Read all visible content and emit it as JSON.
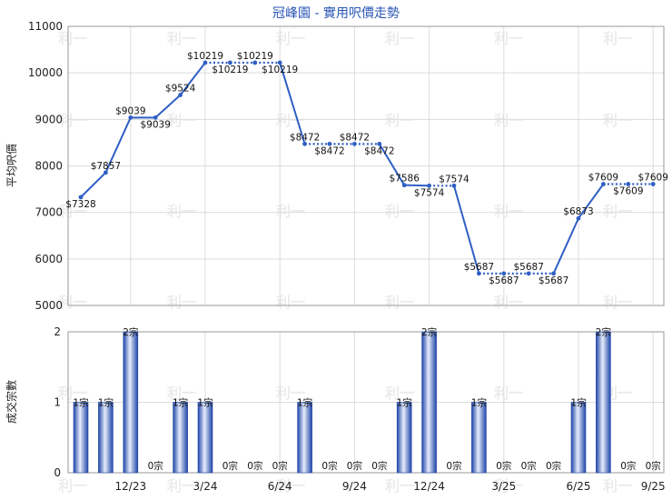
{
  "chart_data": [
    {
      "type": "line",
      "title": "冠峰園 - 實用呎價走勢",
      "ylabel": "平均呎價",
      "ylim": [
        5000,
        11000
      ],
      "yticks": [
        5000,
        6000,
        7000,
        8000,
        9000,
        10000,
        11000
      ],
      "xticks": [
        "12/23",
        "3/24",
        "6/24",
        "9/24",
        "12/24",
        "3/25",
        "6/25",
        "9/25"
      ],
      "series": [
        {
          "values": [
            7328,
            7857,
            9039,
            9039,
            9524,
            10219,
            10219,
            10219,
            10219,
            8472,
            8472,
            8472,
            8472,
            7586,
            7574,
            7574,
            5687,
            5687,
            5687,
            5687,
            6873,
            7609,
            7609,
            7609
          ],
          "labels": [
            "$7328",
            "$7857",
            "$9039",
            "$9039",
            "$9524",
            "$10219",
            "$10219",
            "$10219",
            "$10219",
            "$8472",
            "$8472",
            "$8472",
            "$8472",
            "$7586",
            "$7574",
            "$7574",
            "$5687",
            "$5687",
            "$5687",
            "$5687",
            "$6873",
            "$7609",
            "$7609",
            "$7609"
          ],
          "label_pos": [
            "below",
            "above",
            "above",
            "below",
            "above",
            "above",
            "below",
            "above",
            "below",
            "above",
            "below",
            "above",
            "below",
            "above",
            "below",
            "above",
            "above",
            "below",
            "above",
            "below",
            "above",
            "above",
            "below",
            "above"
          ],
          "dotted_next": [
            false,
            false,
            false,
            false,
            false,
            true,
            true,
            true,
            false,
            true,
            true,
            true,
            false,
            false,
            true,
            false,
            true,
            true,
            true,
            false,
            false,
            true,
            true,
            false
          ],
          "color": "#2f5fc4"
        }
      ]
    },
    {
      "type": "bar",
      "ylabel": "成交宗數",
      "ylim": [
        0,
        2
      ],
      "yticks": [
        0,
        1,
        2
      ],
      "xticks": [
        "12/23",
        "3/24",
        "6/24",
        "9/24",
        "12/24",
        "3/25",
        "6/25",
        "9/25"
      ],
      "values": [
        1,
        1,
        2,
        0,
        1,
        1,
        0,
        0,
        0,
        1,
        0,
        0,
        0,
        1,
        2,
        0,
        1,
        0,
        0,
        0,
        1,
        2,
        0,
        0
      ],
      "labels": [
        "1宗",
        "1宗",
        "2宗",
        "0宗",
        "1宗",
        "1宗",
        "0宗",
        "0宗",
        "0宗",
        "1宗",
        "0宗",
        "0宗",
        "0宗",
        "1宗",
        "2宗",
        "0宗",
        "1宗",
        "0宗",
        "0宗",
        "0宗",
        "1宗",
        "2宗",
        "0宗",
        "0宗"
      ],
      "color": "#3a64c8"
    }
  ]
}
